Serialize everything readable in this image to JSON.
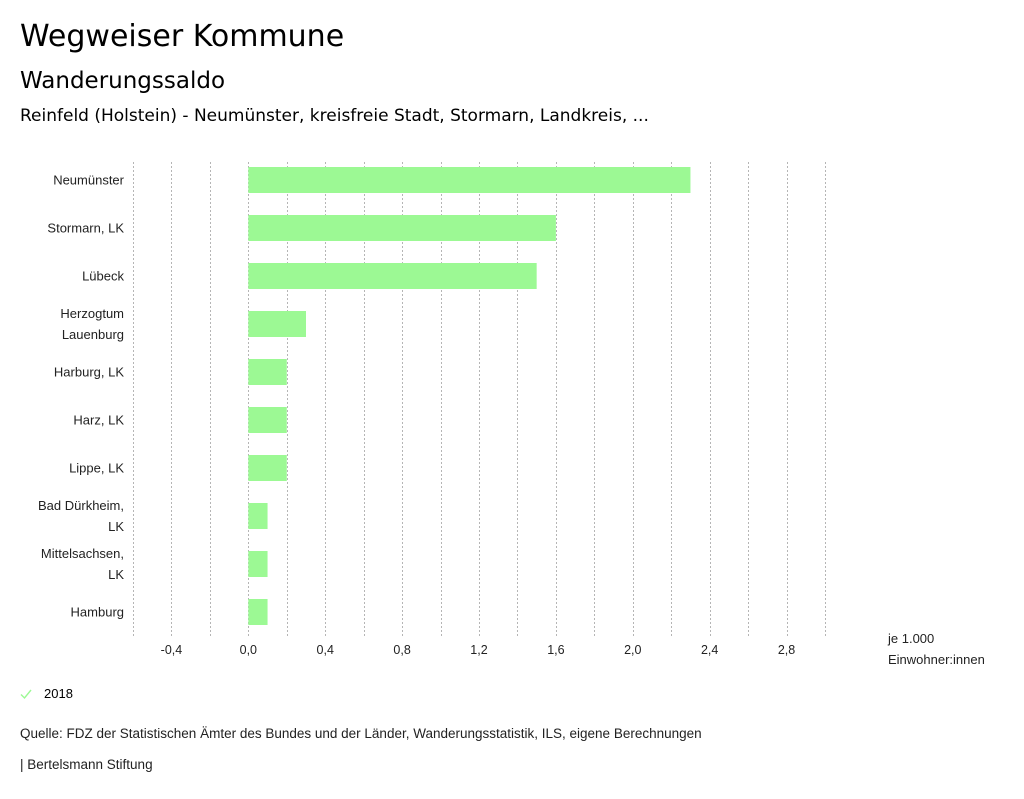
{
  "header": {
    "title": "Wegweiser Kommune",
    "subtitle": "Wanderungssaldo",
    "region": "Reinfeld (Holstein) - Neumünster, kreisfreie Stadt, Stormarn, Landkreis, ..."
  },
  "chart_data": {
    "type": "bar",
    "orientation": "horizontal",
    "title": "Wanderungssaldo",
    "categories": [
      [
        "Neumünster"
      ],
      [
        "Stormarn, LK"
      ],
      [
        "Lübeck"
      ],
      [
        "Herzogtum",
        "Lauenburg"
      ],
      [
        "Harburg, LK"
      ],
      [
        "Harz, LK"
      ],
      [
        "Lippe, LK"
      ],
      [
        "Bad Dürkheim,",
        "LK"
      ],
      [
        "Mittelsachsen,",
        "LK"
      ],
      [
        "Hamburg"
      ]
    ],
    "series": [
      {
        "name": "2018",
        "color": "#9cf994",
        "values": [
          2.3,
          1.6,
          1.5,
          0.3,
          0.2,
          0.2,
          0.2,
          0.1,
          0.1,
          0.1
        ]
      }
    ],
    "xlim": [
      -0.6,
      3.0
    ],
    "grid_step": 0.2,
    "xticks": [
      -0.4,
      0.0,
      0.4,
      0.8,
      1.2,
      1.6,
      2.0,
      2.4,
      2.8
    ],
    "xtick_labels": [
      "-0,4",
      "0,0",
      "0,4",
      "0,8",
      "1,2",
      "1,6",
      "2,0",
      "2,4",
      "2,8"
    ],
    "xlabel": [
      "je 1.000",
      "Einwohner:innen"
    ],
    "grid": true,
    "legend_position": "bottom-left"
  },
  "legend": {
    "label": "2018",
    "icon": "check-icon",
    "color": "#9cf994"
  },
  "footer": {
    "source": "Quelle: FDZ der Statistischen Ämter des Bundes und der Länder, Wanderungsstatistik, ILS, eigene Berechnungen",
    "credit": "| Bertelsmann Stiftung"
  }
}
